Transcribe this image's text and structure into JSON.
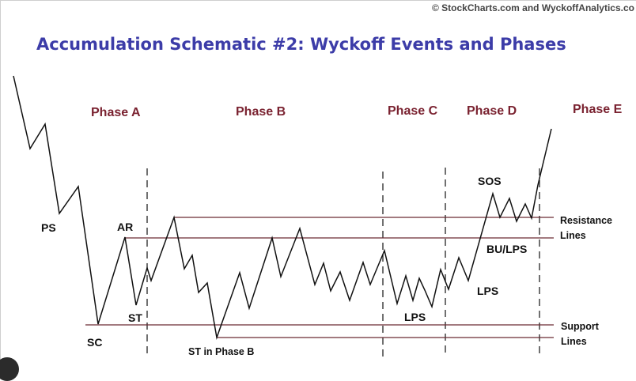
{
  "copyright": "© StockCharts.com and WyckoffAnalytics.co",
  "title": "Accumulation Schematic #2: Wyckoff Events and Phases",
  "phases": {
    "a": "Phase A",
    "b": "Phase B",
    "c": "Phase C",
    "d": "Phase D",
    "e": "Phase E"
  },
  "events": {
    "ps": "PS",
    "sc": "SC",
    "ar": "AR",
    "st": "ST",
    "st_phase_b": "ST in Phase B",
    "lps_c": "LPS",
    "lps_d": "LPS",
    "sos": "SOS",
    "bu_lps": "BU/LPS"
  },
  "labels": {
    "resistance_1": "Resistance",
    "resistance_2": "Lines",
    "support_1": "Support",
    "support_2": "Lines"
  },
  "colors": {
    "title": "#3c3ca8",
    "phase": "#7a2230",
    "line": "#111111",
    "guide": "#6b2a33"
  }
}
